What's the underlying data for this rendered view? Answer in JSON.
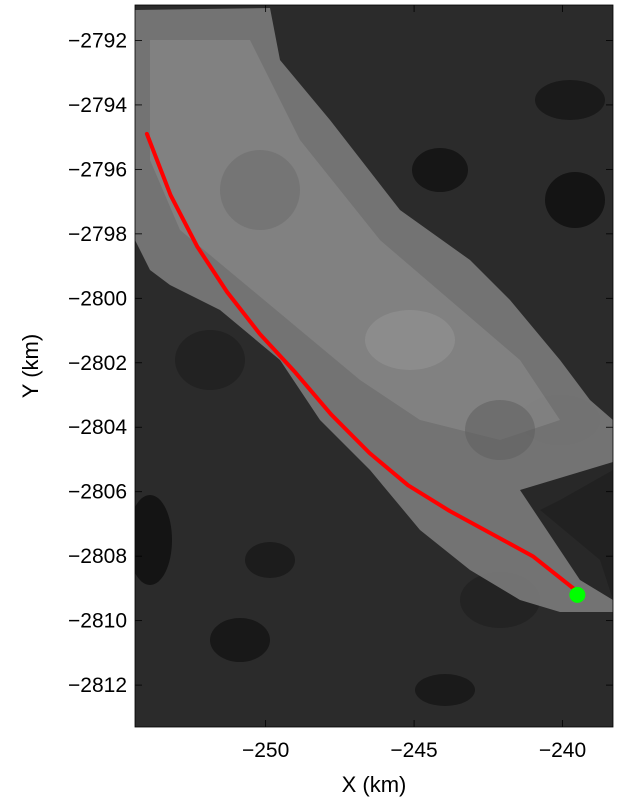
{
  "chart_data": {
    "type": "line",
    "xlabel": "X (km)",
    "ylabel": "Y (km)",
    "xlim": [
      -254.4,
      -238.3
    ],
    "ylim": [
      -2813.3,
      -2790.9
    ],
    "xticks": [
      -250,
      -245,
      -240
    ],
    "xtick_labels": [
      "−250",
      "−245",
      "−240"
    ],
    "yticks": [
      -2792,
      -2794,
      -2796,
      -2798,
      -2800,
      -2802,
      -2804,
      -2806,
      -2808,
      -2810,
      -2812
    ],
    "ytick_labels": [
      "−2792",
      "−2794",
      "−2796",
      "−2798",
      "−2800",
      "−2802",
      "−2804",
      "−2806",
      "−2808",
      "−2810",
      "−2812"
    ],
    "grid": false,
    "background": "satellite image (grayscale)",
    "series": [
      {
        "color": "#ff0000",
        "x": [
          -254.0,
          -253.2,
          -252.3,
          -251.3,
          -250.2,
          -249.0,
          -247.8,
          -246.5,
          -245.2,
          -243.8,
          -242.4,
          -241.0,
          -239.5
        ],
        "y": [
          -2794.9,
          -2796.8,
          -2798.4,
          -2799.8,
          -2801.1,
          -2802.3,
          -2803.6,
          -2804.8,
          -2805.8,
          -2806.6,
          -2807.3,
          -2808.0,
          -2809.1
        ]
      }
    ],
    "markers": [
      {
        "x": -239.5,
        "y": -2809.2,
        "color": "#00ff00"
      }
    ]
  }
}
